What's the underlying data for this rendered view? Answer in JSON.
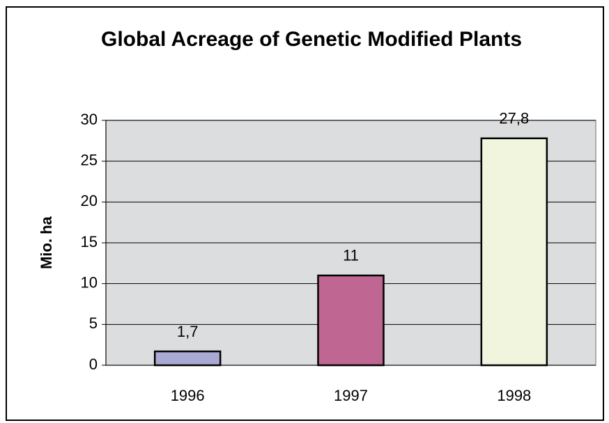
{
  "chart_data": {
    "type": "bar",
    "title": "Global Acreage of Genetic Modified Plants",
    "y_label": "Mio. ha",
    "categories": [
      "1996",
      "1997",
      "1998"
    ],
    "values": [
      1.7,
      11,
      27.8
    ],
    "value_labels": [
      "1,7",
      "11",
      "27,8"
    ],
    "colors": [
      "#a9a9d3",
      "#bf6692",
      "#f1f5de"
    ],
    "ylim": [
      0,
      30
    ],
    "yticks": [
      0,
      5,
      10,
      15,
      20,
      25,
      30
    ],
    "grid": true
  }
}
